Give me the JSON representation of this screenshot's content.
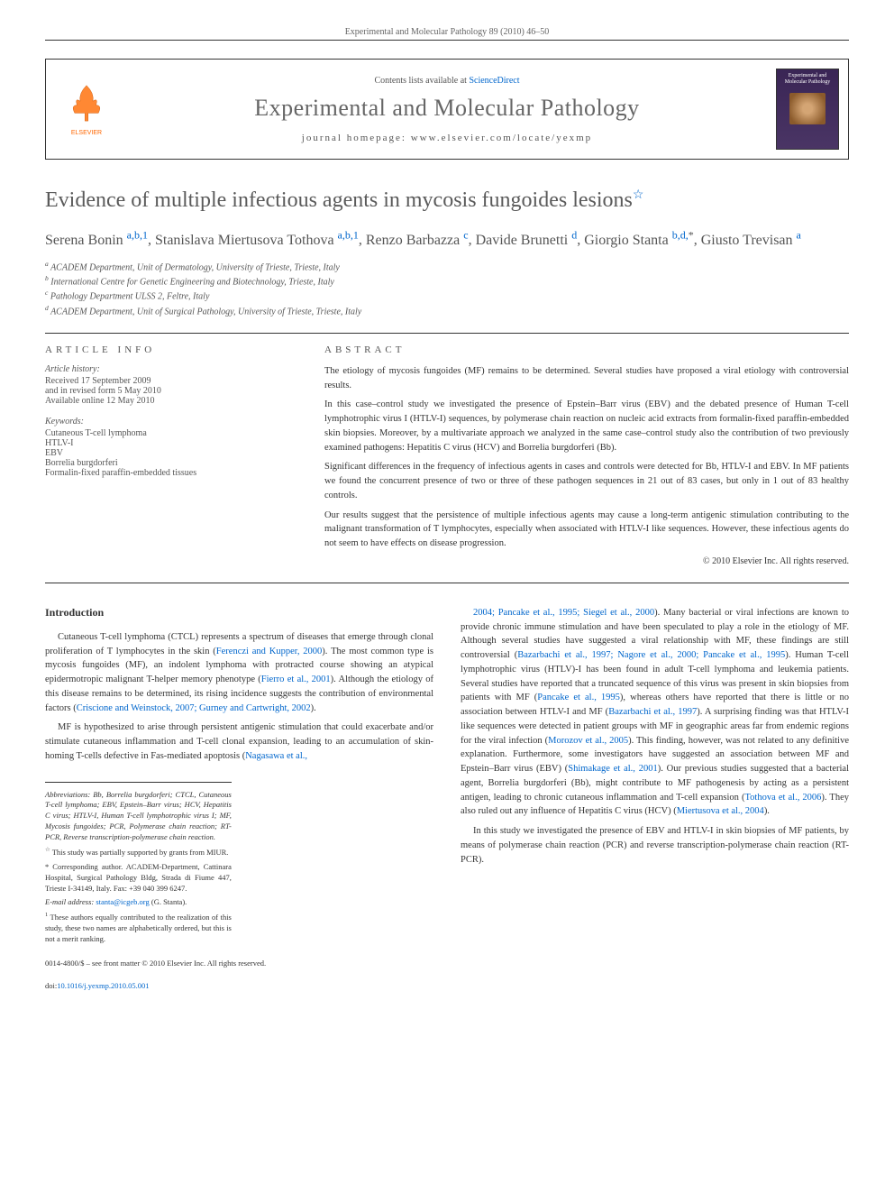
{
  "header": {
    "citation": "Experimental and Molecular Pathology 89 (2010) 46–50"
  },
  "banner": {
    "contents_prefix": "Contents lists available at ",
    "contents_link": "ScienceDirect",
    "journal_name": "Experimental and Molecular Pathology",
    "homepage": "journal homepage: www.elsevier.com/locate/yexmp",
    "elsevier_label": "ELSEVIER",
    "cover_title": "Experimental and Molecular Pathology"
  },
  "article": {
    "title": "Evidence of multiple infectious agents in mycosis fungoides lesions",
    "title_note_symbol": "☆",
    "authors": [
      {
        "name": "Serena Bonin",
        "sup": "a,b,1"
      },
      {
        "name": "Stanislava Miertusova Tothova",
        "sup": "a,b,1"
      },
      {
        "name": "Renzo Barbazza",
        "sup": "c"
      },
      {
        "name": "Davide Brunetti",
        "sup": "d"
      },
      {
        "name": "Giorgio Stanta",
        "sup": "b,d,",
        "star": "*"
      },
      {
        "name": "Giusto Trevisan",
        "sup": "a"
      }
    ],
    "affiliations": [
      {
        "key": "a",
        "text": "ACADEM Department, Unit of Dermatology, University of Trieste, Trieste, Italy"
      },
      {
        "key": "b",
        "text": "International Centre for Genetic Engineering and Biotechnology, Trieste, Italy"
      },
      {
        "key": "c",
        "text": "Pathology Department ULSS 2, Feltre, Italy"
      },
      {
        "key": "d",
        "text": "ACADEM Department, Unit of Surgical Pathology, University of Trieste, Trieste, Italy"
      }
    ]
  },
  "info": {
    "article_info_label": "ARTICLE INFO",
    "history_label": "Article history:",
    "history": [
      "Received 17 September 2009",
      "and in revised form 5 May 2010",
      "Available online 12 May 2010"
    ],
    "keywords_label": "Keywords:",
    "keywords": [
      "Cutaneous T-cell lymphoma",
      "HTLV-I",
      "EBV",
      "Borrelia burgdorferi",
      "Formalin-fixed paraffin-embedded tissues"
    ]
  },
  "abstract": {
    "label": "ABSTRACT",
    "paragraphs": [
      "The etiology of mycosis fungoides (MF) remains to be determined. Several studies have proposed a viral etiology with controversial results.",
      "In this case–control study we investigated the presence of Epstein–Barr virus (EBV) and the debated presence of Human T-cell lymphotrophic virus I (HTLV-I) sequences, by polymerase chain reaction on nucleic acid extracts from formalin-fixed paraffin-embedded skin biopsies. Moreover, by a multivariate approach we analyzed in the same case–control study also the contribution of two previously examined pathogens: Hepatitis C virus (HCV) and Borrelia burgdorferi (Bb).",
      "Significant differences in the frequency of infectious agents in cases and controls were detected for Bb, HTLV-I and EBV. In MF patients we found the concurrent presence of two or three of these pathogen sequences in 21 out of 83 cases, but only in 1 out of 83 healthy controls.",
      "Our results suggest that the persistence of multiple infectious agents may cause a long-term antigenic stimulation contributing to the malignant transformation of T lymphocytes, especially when associated with HTLV-I like sequences. However, these infectious agents do not seem to have effects on disease progression."
    ],
    "copyright": "© 2010 Elsevier Inc. All rights reserved."
  },
  "body": {
    "intro_heading": "Introduction",
    "left_paragraphs": [
      {
        "text": "Cutaneous T-cell lymphoma (CTCL) represents a spectrum of diseases that emerge through clonal proliferation of T lymphocytes in the skin (",
        "ref": "Ferenczi and Kupper, 2000",
        "text2": "). The most common type is mycosis fungoides (MF), an indolent lymphoma with protracted course showing an atypical epidermotropic malignant T-helper memory phenotype (",
        "ref2": "Fierro et al., 2001",
        "text3": "). Although the etiology of this disease remains to be determined, its rising incidence suggests the contribution of environmental factors (",
        "ref3": "Criscione and Weinstock, 2007; Gurney and Cartwright, 2002",
        "text4": ")."
      },
      {
        "text": "MF is hypothesized to arise through persistent antigenic stimulation that could exacerbate and/or stimulate cutaneous inflammation and T-cell clonal expansion, leading to an accumulation of skin-homing T-cells defective in Fas-mediated apoptosis (",
        "ref": "Nagasawa et al.,"
      }
    ],
    "right_paragraphs": [
      {
        "ref0": "2004; Pancake et al., 1995; Siegel et al., 2000",
        "text": "). Many bacterial or viral infections are known to provide chronic immune stimulation and have been speculated to play a role in the etiology of MF. Although several studies have suggested a viral relationship with MF, these findings are still controversial (",
        "ref": "Bazarbachi et al., 1997; Nagore et al., 2000; Pancake et al., 1995",
        "text2": "). Human T-cell lymphotrophic virus (HTLV)-I has been found in adult T-cell lymphoma and leukemia patients. Several studies have reported that a truncated sequence of this virus was present in skin biopsies from patients with MF (",
        "ref2": "Pancake et al., 1995",
        "text3": "), whereas others have reported that there is little or no association between HTLV-I and MF (",
        "ref3": "Bazarbachi et al., 1997",
        "text4": "). A surprising finding was that HTLV-I like sequences were detected in patient groups with MF in geographic areas far from endemic regions for the viral infection (",
        "ref4": "Morozov et al., 2005",
        "text5": "). This finding, however, was not related to any definitive explanation. Furthermore, some investigators have suggested an association between MF and Epstein–Barr virus (EBV) (",
        "ref5": "Shimakage et al., 2001",
        "text6": "). Our previous studies suggested that a bacterial agent, Borrelia burgdorferi (Bb), might contribute to MF pathogenesis by acting as a persistent antigen, leading to chronic cutaneous inflammation and T-cell expansion (",
        "ref6": "Tothova et al., 2006",
        "text7": "). They also ruled out any influence of Hepatitis C virus (HCV) (",
        "ref7": "Miertusova et al., 2004",
        "text8": ")."
      },
      {
        "text": "In this study we investigated the presence of EBV and HTLV-I in skin biopsies of MF patients, by means of polymerase chain reaction (PCR) and reverse transcription-polymerase chain reaction (RT-PCR)."
      }
    ]
  },
  "footnotes": {
    "abbrev_label": "Abbreviations:",
    "abbrev_text": " Bb, Borrelia burgdorferi; CTCL, Cutaneous T-cell lymphoma; EBV, Epstein–Barr virus; HCV, Hepatitis C virus; HTLV-I, Human T-cell lymphotrophic virus I; MF, Mycosis fungoides; PCR, Polymerase chain reaction; RT-PCR, Reverse transcription-polymerase chain reaction.",
    "star_note": "This study was partially supported by grants from MIUR.",
    "corresp_label": "* Corresponding author.",
    "corresp_text": " ACADEM-Department, Cattinara Hospital, Surgical Pathology Bldg, Strada di Fiume 447, Trieste I-34149, Italy. Fax: +39 040 399 6247.",
    "email_label": "E-mail address:",
    "email": "stanta@icgeb.org",
    "email_suffix": " (G. Stanta).",
    "note1": "These authors equally contributed to the realization of this study, these two names are alphabetically ordered, but this is not a merit ranking."
  },
  "footer": {
    "issn": "0014-4800/$ – see front matter © 2010 Elsevier Inc. All rights reserved.",
    "doi_label": "doi:",
    "doi": "10.1016/j.yexmp.2010.05.001"
  },
  "colors": {
    "link": "#0066cc",
    "text": "#333",
    "muted": "#555",
    "elsevier_orange": "#ff6600"
  }
}
